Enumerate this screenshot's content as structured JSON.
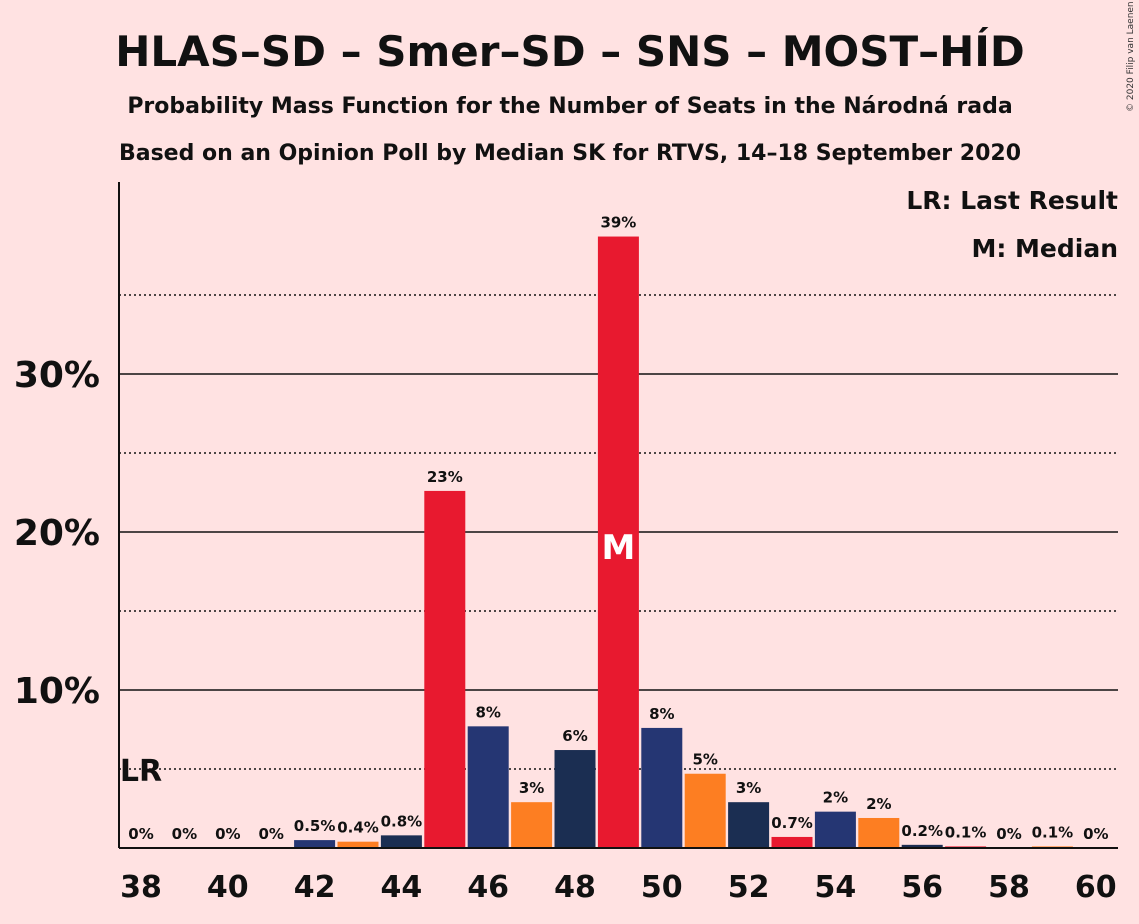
{
  "title": "HLAS–SD – Smer–SD – SNS – MOST–HÍD",
  "subtitle1": "Probability Mass Function for the Number of Seats in the Národná rada",
  "subtitle2": "Based on an Opinion Poll by Median SK for RTVS, 14–18 September 2020",
  "copyright": "© 2020 Filip van Laenen",
  "legend": {
    "lr": "LR: Last Result",
    "median": "M: Median"
  },
  "markers": {
    "lr_label": "LR",
    "lr_seat": 38,
    "median_label": "M",
    "median_seat": 49
  },
  "colors": {
    "red": "#e8192f",
    "blue": "#253673",
    "orange": "#fd7e22",
    "navy": "#1b2e52",
    "background": "#ffe2e2"
  },
  "chart_data": {
    "type": "bar",
    "x": [
      38,
      39,
      40,
      41,
      42,
      43,
      44,
      45,
      46,
      47,
      48,
      49,
      50,
      51,
      52,
      53,
      54,
      55,
      56,
      57,
      58,
      59,
      60
    ],
    "values": [
      0,
      0,
      0,
      0,
      0.5,
      0.4,
      0.8,
      22.6,
      7.7,
      2.9,
      6.2,
      38.7,
      7.6,
      4.7,
      2.9,
      0.7,
      2.3,
      1.9,
      0.2,
      0.1,
      0,
      0.1,
      0
    ],
    "labels": [
      "0%",
      "0%",
      "0%",
      "0%",
      "0.5%",
      "0.4%",
      "0.8%",
      "23%",
      "8%",
      "3%",
      "6%",
      "39%",
      "8%",
      "5%",
      "3%",
      "0.7%",
      "2%",
      "2%",
      "0.2%",
      "0.1%",
      "0%",
      "0.1%",
      "0%"
    ],
    "bar_colors": [
      "red",
      "blue",
      "orange",
      "navy",
      "blue",
      "orange",
      "navy",
      "red",
      "blue",
      "orange",
      "navy",
      "red",
      "blue",
      "orange",
      "navy",
      "red",
      "blue",
      "orange",
      "navy",
      "red",
      "blue",
      "orange",
      "navy"
    ],
    "xticks": [
      38,
      40,
      42,
      44,
      46,
      48,
      50,
      52,
      54,
      56,
      58,
      60
    ],
    "yticks": [
      10,
      20,
      30
    ],
    "ytick_labels": [
      "10%",
      "20%",
      "30%"
    ],
    "minor_yticks": [
      5,
      15,
      25,
      35
    ],
    "ylim": [
      0,
      42
    ]
  }
}
